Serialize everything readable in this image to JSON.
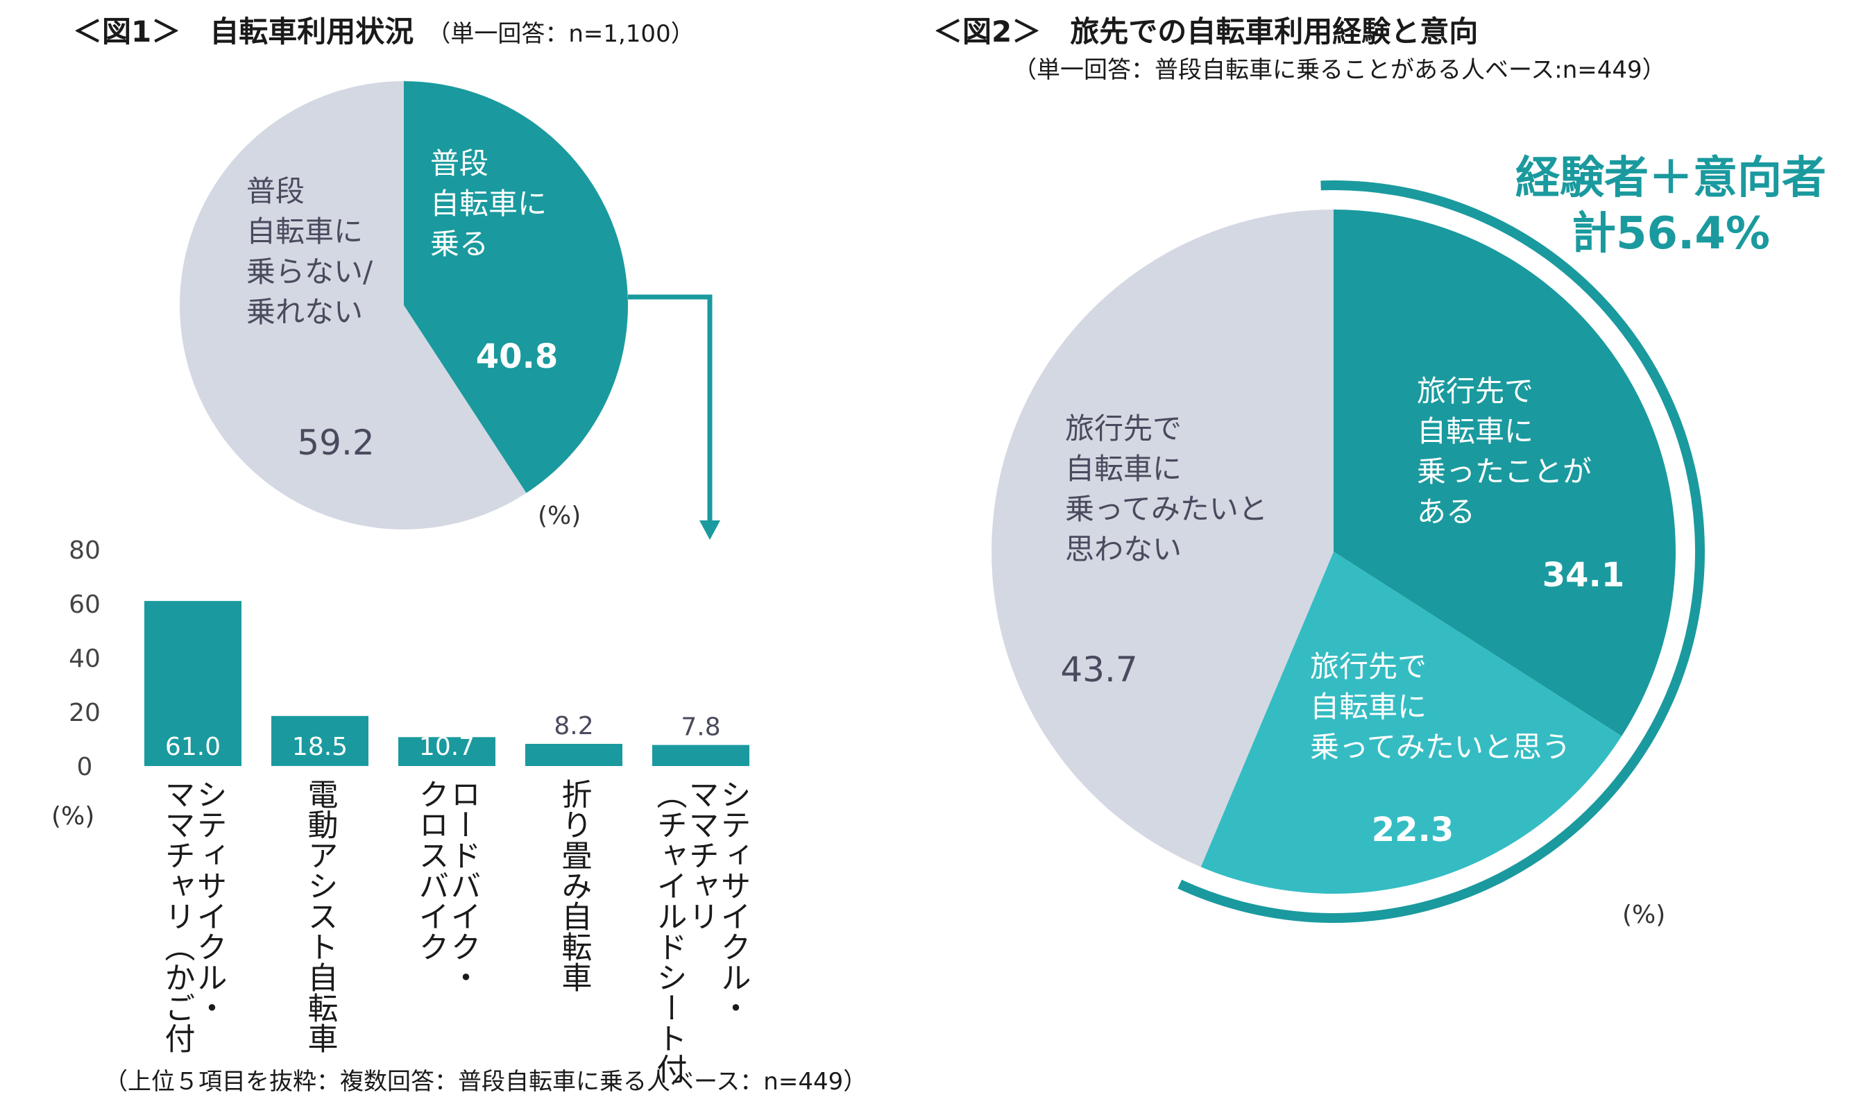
{
  "colors": {
    "teal": "#1a9a9e",
    "light_teal": "#35bcc3",
    "gray": "#d4d8e2",
    "text_dark": "#4a4a5e"
  },
  "chart_data": [
    {
      "type": "pie",
      "title": "＜図1＞　自転車利用状況",
      "title_note": "（単一回答：n=1,100）",
      "unit_label": "(%)",
      "slices": [
        {
          "label": "普段自転車に乗る",
          "label_lines": [
            "普段",
            "自転車に",
            "乗る"
          ],
          "value": 40.8,
          "value_text": "40.8",
          "color": "#1a9a9e"
        },
        {
          "label": "普段自転車に乗らない/乗れない",
          "label_lines": [
            "普段",
            "自転車に",
            "乗らない/",
            "乗れない"
          ],
          "value": 59.2,
          "value_text": "59.2",
          "color": "#d4d8e2"
        }
      ]
    },
    {
      "type": "bar",
      "base_note": "（上位５項目を抜粋：複数回答：普段自転車に乗る人ベース：n=449）",
      "unit_label": "(%)",
      "ylim": [
        0,
        80
      ],
      "yticks": [
        "0",
        "20",
        "40",
        "60",
        "80"
      ],
      "categories": [
        {
          "name": "シティサイクル・ママチャリ（かご付",
          "lines": [
            "シティサイクル・",
            "ママチャリ（かご付"
          ]
        },
        {
          "name": "電動アシスト自転車",
          "lines": [
            "電動アシスト自転車"
          ]
        },
        {
          "name": "ロードバイク・クロスバイク",
          "lines": [
            "ロードバイク・",
            "クロスバイク"
          ]
        },
        {
          "name": "折り畳み自転車",
          "lines": [
            "折り畳み自転車"
          ]
        },
        {
          "name": "シティサイクル・ママチャリ（チャイルドシート付",
          "lines": [
            "シティサイクル・",
            "ママチャリ",
            "（チャイルドシート付"
          ]
        }
      ],
      "values": [
        61.0,
        18.5,
        10.7,
        8.2,
        7.8
      ],
      "value_texts": [
        "61.0",
        "18.5",
        "10.7",
        "8.2",
        "7.8"
      ],
      "color": "#1a9a9e"
    },
    {
      "type": "pie",
      "title": "＜図2＞　旅先での自転車利用経験と意向",
      "subtitle": "（単一回答：普段自転車に乗ることがある人ベース:n=449）",
      "unit_label": "(%)",
      "highlight_lines": [
        "経験者＋意向者",
        "計56.4%"
      ],
      "slices": [
        {
          "label": "旅行先で自転車に乗ったことがある",
          "label_lines": [
            "旅行先で",
            "自転車に",
            "乗ったことが",
            "ある"
          ],
          "value": 34.1,
          "value_text": "34.1",
          "color": "#1a9a9e"
        },
        {
          "label": "旅行先で自転車に乗ってみたいと思う",
          "label_lines": [
            "旅行先で",
            "自転車に",
            "乗ってみたいと思う"
          ],
          "value": 22.3,
          "value_text": "22.3",
          "color": "#35bcc3"
        },
        {
          "label": "旅行先で自転車に乗ってみたいと思わない",
          "label_lines": [
            "旅行先で",
            "自転車に",
            "乗ってみたいと",
            "思わない"
          ],
          "value": 43.7,
          "value_text": "43.7",
          "color": "#d4d8e2"
        }
      ]
    }
  ]
}
